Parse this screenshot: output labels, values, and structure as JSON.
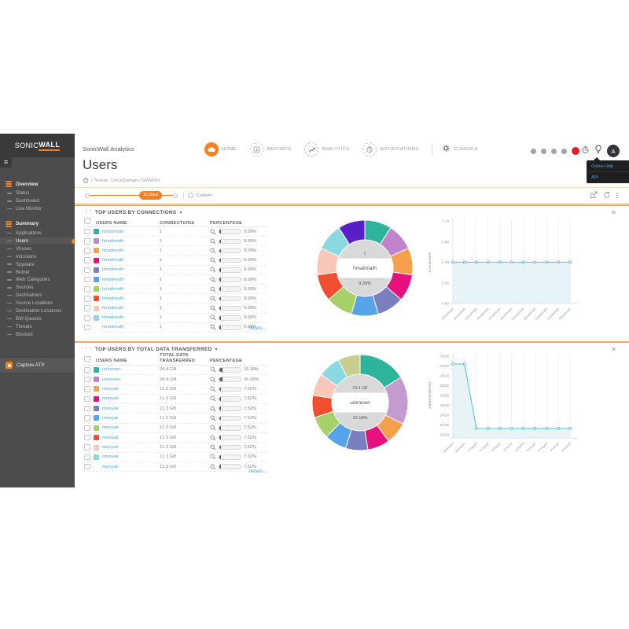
{
  "sidebar": {
    "logo": {
      "part1": "SONIC",
      "part2": "WALL"
    },
    "sections": [
      {
        "label": "Overview",
        "items": [
          "Status",
          "Dashboard",
          "Live Monitor"
        ]
      },
      {
        "label": "Summary",
        "items": [
          "Applications",
          "Users",
          "Viruses",
          "Intrusions",
          "Spyware",
          "Botnet",
          "Web Categories",
          "Sources",
          "Destinations",
          "Source Locations",
          "Destination Locations",
          "BW Queues",
          "Threats",
          "Blocked"
        ]
      }
    ],
    "active_item": "Users",
    "capture_atp": "Capture ATP"
  },
  "header": {
    "brand": "SonicWall Analytics",
    "nav": [
      "HOME",
      "REPORTS",
      "ANALYTICS",
      "NOTIFICATIONS",
      "CONSOLE"
    ],
    "avatar": "A",
    "tooltip": [
      "Online Help",
      "API"
    ]
  },
  "page": {
    "title": "Users",
    "breadcrumb": "/ Tenant - LocalDomain / GW9650"
  },
  "timebar": {
    "range_badge": "30 Days",
    "custom_label": "Custom"
  },
  "sections": [
    {
      "title": "TOP USERS BY CONNECTIONS",
      "columns": [
        "USERS NAME",
        "CONNECTIONS",
        "PERCENTAGE"
      ],
      "details": "details...",
      "rows": [
        {
          "name": "hmatimath",
          "color": "#2FB49C",
          "value": "1",
          "pct": "9.09%"
        },
        {
          "name": "hmatimath",
          "color": "#C183CB",
          "value": "1",
          "pct": "9.09%"
        },
        {
          "name": "hmatimath",
          "color": "#F6A04D",
          "value": "1",
          "pct": "9.09%"
        },
        {
          "name": "hmatimath",
          "color": "#E5127D",
          "value": "1",
          "pct": "9.09%"
        },
        {
          "name": "hmatimath",
          "color": "#7A7FC0",
          "value": "1",
          "pct": "9.09%"
        },
        {
          "name": "hmatimath",
          "color": "#55A4E8",
          "value": "1",
          "pct": "9.09%"
        },
        {
          "name": "hmatimath",
          "color": "#A5D168",
          "value": "1",
          "pct": "9.09%"
        },
        {
          "name": "hmatimath",
          "color": "#F04E2F",
          "value": "1",
          "pct": "9.09%"
        },
        {
          "name": "hmatimath",
          "color": "#F9C6BA",
          "value": "1",
          "pct": "9.09%"
        },
        {
          "name": "hmatimath",
          "color": "#8AD9E0",
          "value": "1",
          "pct": "9.09%"
        },
        {
          "name": "hmatimath",
          "color": "",
          "value": "1",
          "pct": "9.09%"
        }
      ]
    },
    {
      "title": "TOP USERS BY TOTAL DATA TRANSFERRED",
      "columns": [
        "USERS NAME",
        "TOTAL DATA TRANSFERRED",
        "PERCENTAGE"
      ],
      "details": "details...",
      "rows": [
        {
          "name": "unknown",
          "color": "#2FB49C",
          "value": "24.4 GB",
          "pct": "16.18%"
        },
        {
          "name": "unknown",
          "color": "#C183CB",
          "value": "24.4 GB",
          "pct": "16.18%"
        },
        {
          "name": "mnoyak",
          "color": "#F6A04D",
          "value": "11.3 GB",
          "pct": "7.52%"
        },
        {
          "name": "mnoyak",
          "color": "#E5127D",
          "value": "11.3 GB",
          "pct": "7.52%"
        },
        {
          "name": "mnoyak",
          "color": "#7A7FC0",
          "value": "11.3 GB",
          "pct": "7.52%"
        },
        {
          "name": "mnoyak",
          "color": "#55A4E8",
          "value": "11.3 GB",
          "pct": "7.52%"
        },
        {
          "name": "mnoyak",
          "color": "#A5D168",
          "value": "11.3 GB",
          "pct": "7.52%"
        },
        {
          "name": "mnoyak",
          "color": "#F04E2F",
          "value": "11.3 GB",
          "pct": "7.52%"
        },
        {
          "name": "mnoyak",
          "color": "#F9C6BA",
          "value": "11.3 GB",
          "pct": "7.52%"
        },
        {
          "name": "mnoyak",
          "color": "#8AD9E0",
          "value": "11.3 GB",
          "pct": "7.52%"
        },
        {
          "name": "mnoyak",
          "color": "",
          "value": "11.3 GB",
          "pct": "7.52%"
        }
      ]
    }
  ],
  "chart_data": [
    {
      "id": "donut-connections",
      "type": "pie",
      "title": "TOP USERS BY CONNECTIONS",
      "labels": [
        "hmatimath",
        "hmatimath",
        "hmatimath",
        "hmatimath",
        "hmatimath",
        "hmatimath",
        "hmatimath",
        "hmatimath",
        "hmatimath",
        "hmatimath",
        "hmatimath"
      ],
      "values": [
        9.09,
        9.09,
        9.09,
        9.09,
        9.09,
        9.09,
        9.09,
        9.09,
        9.09,
        9.09,
        9.09
      ],
      "colors": [
        "#2FB49C",
        "#C183CB",
        "#F6A04D",
        "#E5127D",
        "#7A7FC0",
        "#55A4E8",
        "#A5D168",
        "#F04E2F",
        "#F9C6BA",
        "#8AD9E0",
        "#5A1EC8"
      ],
      "center_labels": {
        "top": "1",
        "middle": "hmatimath",
        "bottom": "9.09%"
      }
    },
    {
      "id": "line-connections",
      "type": "area",
      "x": [
        "hmatimath",
        "hmatimath",
        "hmatimath",
        "hmatimath",
        "hmatimath",
        "hmatimath",
        "hmatimath",
        "hmatimath",
        "hmatimath",
        "hmatimath",
        "hmatimath"
      ],
      "values": [
        1,
        1,
        1,
        1,
        1,
        1,
        1,
        1,
        1,
        1,
        1
      ],
      "ylabel": "Connections",
      "ylim": [
        0.9,
        1.1
      ],
      "yticks": [
        1.1,
        1.05,
        1.0,
        0.95,
        0.9
      ],
      "ytick_labels": [
        "1.10",
        "1.05",
        "1.00",
        "0.95",
        "0.90"
      ],
      "line_color": "#5FC0CC",
      "fill_color": "#DDF0F4",
      "grid": true,
      "legend": false
    },
    {
      "id": "donut-data",
      "type": "pie",
      "title": "TOP USERS BY TOTAL DATA TRANSFERRED",
      "labels": [
        "unknown",
        "unknown",
        "mnoyak",
        "mnoyak",
        "mnoyak",
        "mnoyak",
        "mnoyak",
        "mnoyak",
        "mnoyak",
        "mnoyak",
        "mnoyak"
      ],
      "values": [
        16.18,
        16.18,
        7.52,
        7.52,
        7.52,
        7.52,
        7.52,
        7.52,
        7.52,
        7.52,
        7.52
      ],
      "colors": [
        "#2FB49C",
        "#C49BD1",
        "#F6A04D",
        "#E5127D",
        "#7A7FC0",
        "#55A4E8",
        "#A5D168",
        "#F04E2F",
        "#F9C6BA",
        "#8AD9E0",
        "#C9CE8F"
      ],
      "center_labels": {
        "top": "24.4 GB",
        "middle": "unknown",
        "bottom": "16.18%"
      }
    },
    {
      "id": "line-data",
      "type": "area",
      "x": [
        "unknown",
        "unknown",
        "mnoyak",
        "mnoyak",
        "mnoyak",
        "mnoyak",
        "mnoyak",
        "mnoyak",
        "mnoyak",
        "mnoyak",
        "mnoyak"
      ],
      "values": [
        24.4,
        24.4,
        11.3,
        11.3,
        11.3,
        11.3,
        11.3,
        11.3,
        11.3,
        11.3,
        11.3
      ],
      "ylabel": "DataTransferred",
      "ylim": [
        10,
        26
      ],
      "yticks": [
        26,
        24,
        22,
        20,
        18,
        16,
        14,
        12,
        10
      ],
      "ytick_labels": [
        "26GB",
        "24GB",
        "22GB",
        "20GB",
        "18GB",
        "16GB",
        "14GB",
        "12GB",
        "10GB"
      ],
      "line_color": "#5FC0CC",
      "fill_color": "#DDF0F4",
      "grid": true,
      "legend": false
    }
  ],
  "colors": {
    "accent": "#F48120",
    "link": "#53A7DC",
    "badge_red": "#E31E24"
  }
}
